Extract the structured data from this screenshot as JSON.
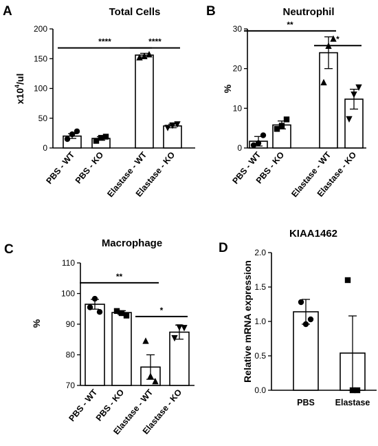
{
  "chart_data": [
    {
      "panel": "A",
      "type": "bar",
      "title": "Total Cells",
      "ylabel": "x10⁴/ul",
      "ylabel_base": "x10",
      "ylabel_sup": "4",
      "ylabel_unit": "/ul",
      "ylim": [
        0,
        200
      ],
      "yticks": [
        0,
        50,
        100,
        150,
        200
      ],
      "categories": [
        "PBS - WT",
        "PBS - KO",
        "Elastase - WT",
        "Elastase - KO"
      ],
      "values": [
        20,
        16,
        156,
        37
      ],
      "errors": [
        4,
        3,
        3,
        3
      ],
      "markers": [
        "circle",
        "square",
        "triangle-up",
        "triangle-down"
      ],
      "points": [
        [
          15,
          23,
          28
        ],
        [
          12,
          17,
          19
        ],
        [
          152,
          154,
          157
        ],
        [
          34,
          38,
          40
        ]
      ],
      "significance": [
        {
          "from": 0,
          "to": 2,
          "label": "****",
          "y": 168
        },
        {
          "from": 2,
          "to": 3,
          "label": "****",
          "y": 168
        }
      ]
    },
    {
      "panel": "B",
      "type": "bar",
      "title": "Neutrophil",
      "ylabel": "%",
      "ylim": [
        0,
        30
      ],
      "yticks": [
        0,
        10,
        20,
        30
      ],
      "categories": [
        "PBS - WT",
        "PBS - KO",
        "Elastase - WT",
        "Elastase - KO"
      ],
      "values": [
        1.7,
        5.8,
        24,
        12.3
      ],
      "errors": [
        1.2,
        1.0,
        4,
        2.5
      ],
      "markers": [
        "circle",
        "square",
        "triangle-up",
        "triangle-down"
      ],
      "points": [
        [
          0.7,
          1.2,
          3.2
        ],
        [
          4.8,
          5.6,
          7.2
        ],
        [
          16.5,
          25.7,
          27.5
        ],
        [
          7.3,
          13.5,
          15.3
        ]
      ],
      "significance": [
        {
          "from": 0,
          "to": 2,
          "label": "**",
          "y": 29.5
        },
        {
          "from": 2,
          "to": 3,
          "label": "*",
          "y": 25.8
        }
      ]
    },
    {
      "panel": "C",
      "type": "bar",
      "title": "Macrophage",
      "ylabel": "%",
      "ylim": [
        70,
        110
      ],
      "yticks": [
        70,
        80,
        90,
        100,
        110
      ],
      "categories": [
        "PBS - WT",
        "PBS - KO",
        "Elastase - WT",
        "Elastase - KO"
      ],
      "values": [
        96.5,
        93.8,
        76,
        87.4
      ],
      "errors": [
        1.6,
        0.6,
        4,
        2.3
      ],
      "markers": [
        "circle",
        "square",
        "triangle-up",
        "triangle-down"
      ],
      "points": [
        [
          95.5,
          98.3,
          94
        ],
        [
          94.3,
          93.6,
          92.8
        ],
        [
          84.5,
          73,
          71.3
        ],
        [
          85.5,
          89,
          88.8
        ]
      ],
      "significance": [
        {
          "from": 0,
          "to": 2,
          "label": "**",
          "y": 103.5
        },
        {
          "from": 2,
          "to": 3,
          "label": "*",
          "y": 92.5
        }
      ]
    },
    {
      "panel": "D",
      "type": "bar",
      "title": "KIAA1462",
      "ylabel": "Relative mRNA expression",
      "ylim": [
        0,
        2.0
      ],
      "yticks": [
        "0.0",
        "0.5",
        "1.0",
        "1.5",
        "2.0"
      ],
      "categories": [
        "PBS",
        "Elastase"
      ],
      "values": [
        1.14,
        0.54
      ],
      "errors": [
        0.18,
        0.54
      ],
      "markers": [
        "circle",
        "square"
      ],
      "points": [
        [
          1.28,
          0.96,
          1.03
        ],
        [
          1.6,
          0.0,
          0.0
        ]
      ],
      "significance": []
    }
  ]
}
